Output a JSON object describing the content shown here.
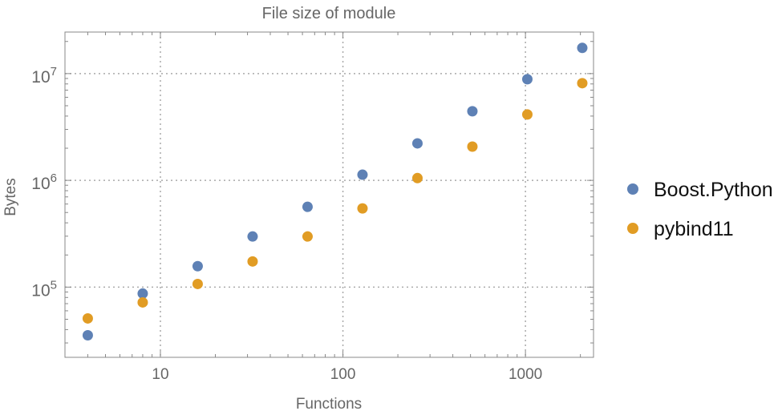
{
  "chart_data": {
    "type": "scatter",
    "title": "File size of module",
    "xlabel": "Functions",
    "ylabel": "Bytes",
    "xscale": "log",
    "yscale": "log",
    "xlim": [
      3,
      2360
    ],
    "ylim": [
      22000,
      24500000
    ],
    "grid": true,
    "legend_placement": "right",
    "x_ticks": [
      {
        "value": 10,
        "label": "10"
      },
      {
        "value": 100,
        "label": "100"
      },
      {
        "value": 1000,
        "label": "1000"
      }
    ],
    "y_ticks": [
      {
        "value": 100000,
        "base": "10",
        "exp": "5"
      },
      {
        "value": 1000000,
        "base": "10",
        "exp": "6"
      },
      {
        "value": 10000000,
        "base": "10",
        "exp": "7"
      }
    ],
    "x": [
      4,
      8,
      16,
      32,
      64,
      128,
      256,
      512,
      1024,
      2048
    ],
    "series": [
      {
        "name": "Boost.Python",
        "color": "#5E81B5",
        "values": [
          35400,
          87000,
          157000,
          298000,
          565000,
          1130000,
          2220000,
          4440000,
          8860000,
          17400000
        ]
      },
      {
        "name": "pybind11",
        "color": "#E19C24",
        "values": [
          50900,
          71900,
          107000,
          174000,
          298000,
          546000,
          1050000,
          2070000,
          4140000,
          8130000
        ]
      }
    ]
  }
}
